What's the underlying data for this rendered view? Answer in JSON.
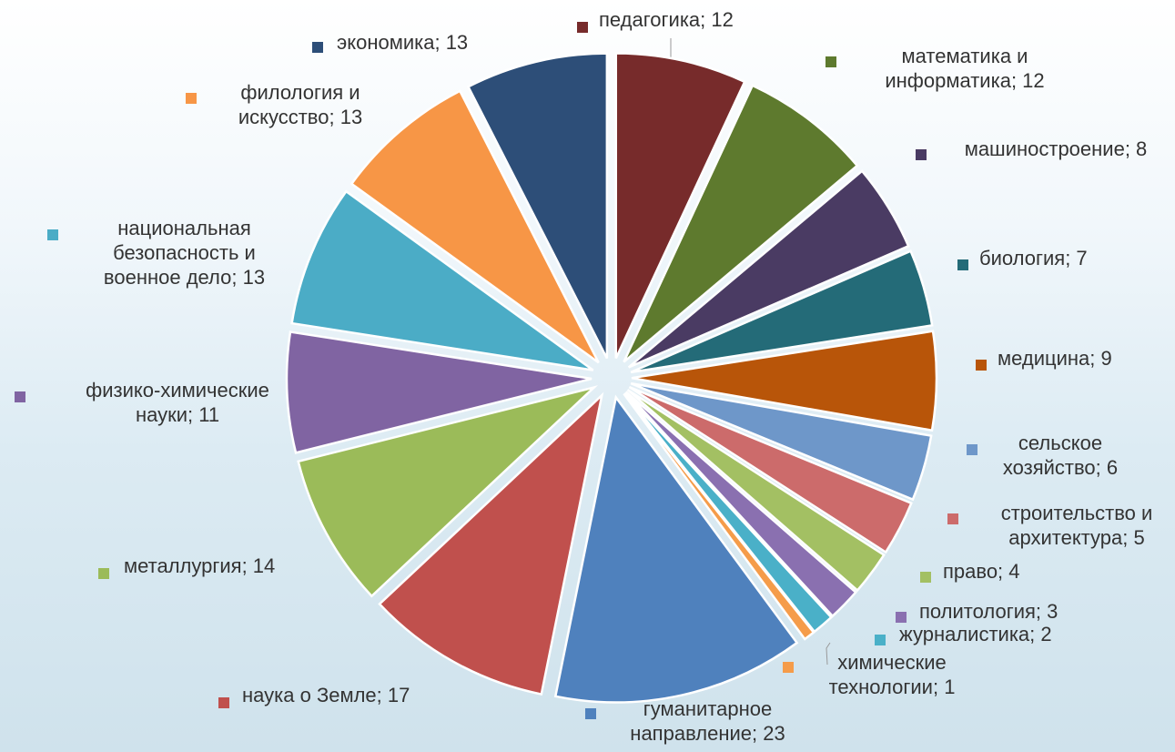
{
  "chart_data": {
    "type": "pie",
    "exploded": true,
    "values": [
      12,
      12,
      8,
      7,
      9,
      6,
      5,
      4,
      3,
      2,
      1,
      23,
      17,
      14,
      11,
      13,
      13,
      13
    ],
    "value_labels": [
      "педагогика; 12",
      "математика и информатика; 12",
      "машиностроение; 8",
      "биология; 7",
      "медицина; 9",
      "сельское хозяйство; 6",
      "строительство и архитектура; 5",
      "право; 4",
      "политология; 3",
      "журналистика; 2",
      "химические технологии; 1",
      "гуманитарное направление; 23",
      "наука о Земле; 17",
      "металлургия; 14",
      "физико-химические науки; 11",
      "национальная безопасность и военное дело; 13",
      "филология и искусство; 13",
      "экономика; 13"
    ],
    "colors": [
      "#772b2b",
      "#5e7a2e",
      "#4a3b63",
      "#246b78",
      "#b85509",
      "#6e97c9",
      "#cc6b6b",
      "#a3c063",
      "#8a70b0",
      "#4ab0c8",
      "#f59c4a",
      "#4f81bd",
      "#c0504d",
      "#9bbb59",
      "#8064a2",
      "#4bacc6",
      "#f79646",
      "#2d4e78"
    ]
  }
}
